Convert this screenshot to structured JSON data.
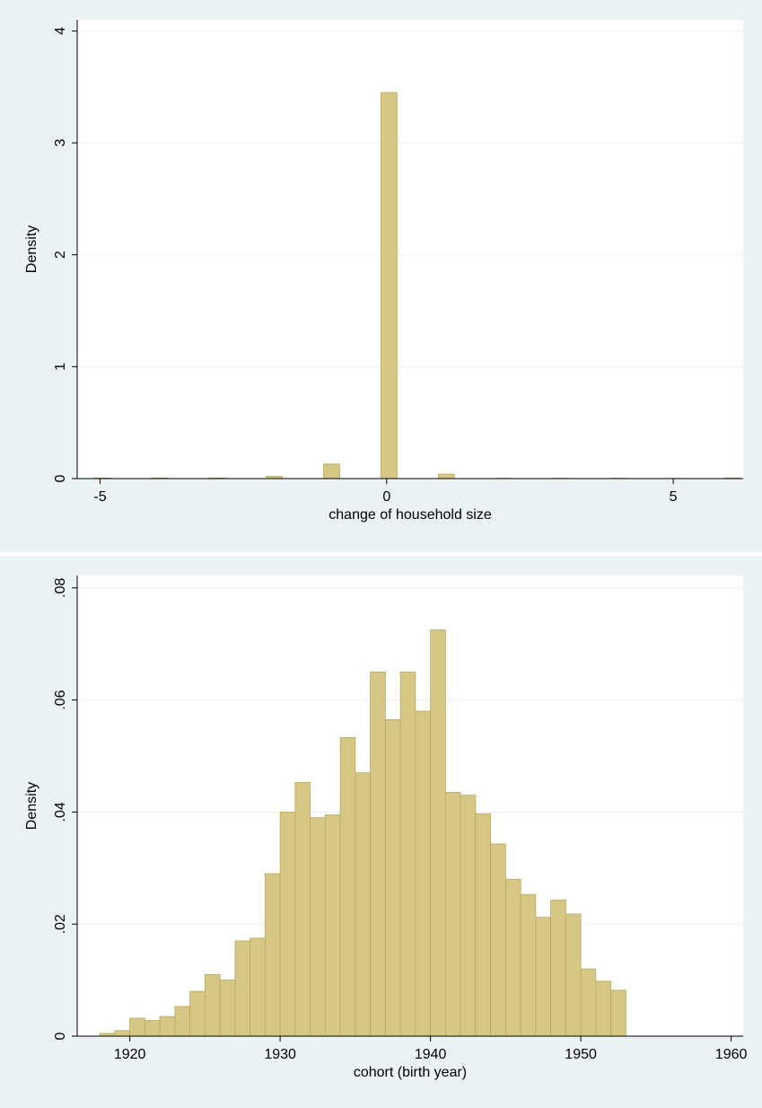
{
  "chart_data": [
    {
      "type": "histogram",
      "x_label": "change of household size",
      "y_label": "Density",
      "bins": [
        -5.1,
        -4.82,
        -4.1,
        -3.82,
        -3.1,
        -2.82,
        -2.1,
        -1.82,
        -1.1,
        -0.82,
        -0.1,
        0.18,
        0.9,
        1.18,
        1.9,
        2.18,
        2.9,
        3.18,
        3.9,
        4.18,
        4.9,
        5.18,
        5.9,
        6.18
      ],
      "values": [
        0.005,
        0,
        0.005,
        0,
        0.005,
        0,
        0.02,
        0,
        0.13,
        0,
        3.45,
        0,
        0.04,
        0,
        0.003,
        0,
        0.003,
        0,
        0.003,
        0,
        0.002,
        0,
        0.005
      ],
      "color": "#d7c784",
      "xlim": [
        -5.4,
        6.22
      ],
      "ylim": [
        0,
        4.1
      ],
      "xticks": [
        -5,
        0,
        5
      ],
      "yticks": [
        0,
        1,
        2,
        3,
        4
      ],
      "grid": true
    },
    {
      "type": "histogram",
      "x_label": "cohort (birth year)",
      "y_label": "Density",
      "bins": [
        1918,
        1919,
        1920,
        1921,
        1922,
        1923,
        1924,
        1925,
        1926,
        1927,
        1928,
        1929,
        1930,
        1931,
        1932,
        1933,
        1934,
        1935,
        1936,
        1937,
        1938,
        1939,
        1940,
        1941,
        1942,
        1943,
        1944,
        1945,
        1946,
        1947,
        1948,
        1949,
        1950,
        1951,
        1952,
        1953
      ],
      "values": [
        0.0005,
        0.001,
        0.0032,
        0.0028,
        0.0035,
        0.0053,
        0.008,
        0.011,
        0.01,
        0.017,
        0.0175,
        0.029,
        0.04,
        0.0453,
        0.039,
        0.0395,
        0.0533,
        0.047,
        0.065,
        0.0565,
        0.065,
        0.058,
        0.0725,
        0.0435,
        0.043,
        0.0397,
        0.0343,
        0.028,
        0.0253,
        0.0212,
        0.0243,
        0.0218,
        0.012,
        0.0098,
        0.0082
      ],
      "color": "#d7c784",
      "xlim": [
        1916.5,
        1960.8
      ],
      "ylim": [
        0,
        0.0822
      ],
      "xticks": [
        1920,
        1930,
        1940,
        1950,
        1960
      ],
      "yticks": [
        0,
        {
          "value": 0.02,
          "label": ".02"
        },
        {
          "value": 0.04,
          "label": ".04"
        },
        {
          "value": 0.06,
          "label": ".06"
        },
        {
          "value": 0.08,
          "label": ".08"
        }
      ],
      "grid": true
    }
  ]
}
